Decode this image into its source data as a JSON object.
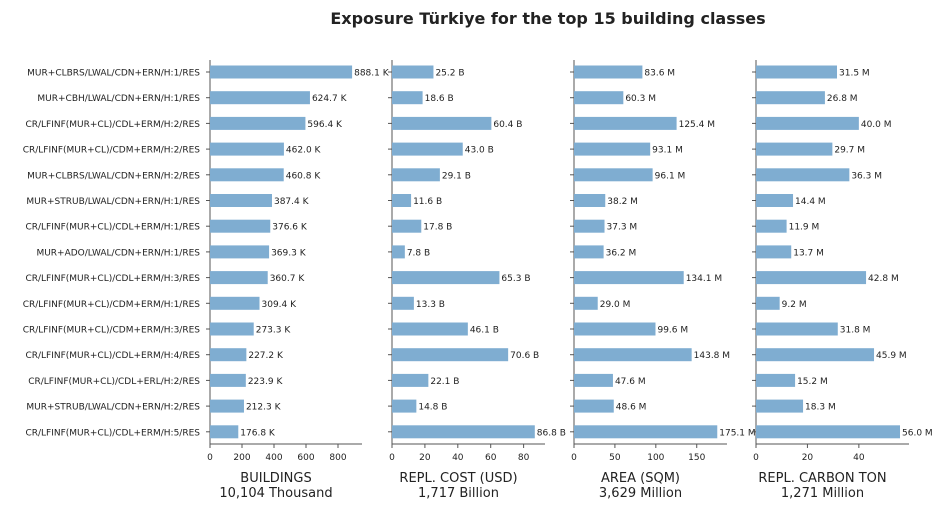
{
  "chart_data": {
    "type": "bar",
    "orientation": "horizontal",
    "title": "Exposure Türkiye for the top 15 building classes",
    "bar_color": "#7fadd1",
    "categories": [
      "MUR+CLBRS/LWAL/CDN+ERN/H:1/RES",
      "MUR+CBH/LWAL/CDN+ERN/H:1/RES",
      "CR/LFINF(MUR+CL)/CDL+ERM/H:2/RES",
      "CR/LFINF(MUR+CL)/CDM+ERM/H:2/RES",
      "MUR+CLBRS/LWAL/CDN+ERN/H:2/RES",
      "MUR+STRUB/LWAL/CDN+ERN/H:1/RES",
      "CR/LFINF(MUR+CL)/CDL+ERM/H:1/RES",
      "MUR+ADO/LWAL/CDN+ERN/H:1/RES",
      "CR/LFINF(MUR+CL)/CDL+ERM/H:3/RES",
      "CR/LFINF(MUR+CL)/CDM+ERM/H:1/RES",
      "CR/LFINF(MUR+CL)/CDM+ERM/H:3/RES",
      "CR/LFINF(MUR+CL)/CDL+ERM/H:4/RES",
      "CR/LFINF(MUR+CL)/CDL+ERL/H:2/RES",
      "MUR+STRUB/LWAL/CDN+ERN/H:2/RES",
      "CR/LFINF(MUR+CL)/CDL+ERM/H:5/RES"
    ],
    "panels": [
      {
        "xlabel": "BUILDINGS",
        "total": "10,104 Thousand",
        "xlim": [
          0,
          950
        ],
        "ticks": [
          0,
          200,
          400,
          600,
          800
        ],
        "values": [
          888.1,
          624.7,
          596.4,
          462.0,
          460.8,
          387.4,
          376.6,
          369.3,
          360.7,
          309.4,
          273.3,
          227.2,
          223.9,
          212.3,
          176.8
        ],
        "labels": [
          "888.1 K",
          "624.7 K",
          "596.4 K",
          "462.0 K",
          "460.8 K",
          "387.4 K",
          "376.6 K",
          "369.3 K",
          "360.7 K",
          "309.4 K",
          "273.3 K",
          "227.2 K",
          "223.9 K",
          "212.3 K",
          "176.8 K"
        ]
      },
      {
        "xlabel": "REPL. COST (USD)",
        "total": "1,717 Billion",
        "xlim": [
          0,
          93
        ],
        "ticks": [
          0,
          20,
          40,
          60,
          80
        ],
        "values": [
          25.2,
          18.6,
          60.4,
          43.0,
          29.1,
          11.6,
          17.8,
          7.8,
          65.3,
          13.3,
          46.1,
          70.6,
          22.1,
          14.8,
          86.8
        ],
        "labels": [
          "25.2 B",
          "18.6 B",
          "60.4 B",
          "43.0 B",
          "29.1 B",
          "11.6 B",
          "17.8 B",
          "7.8 B",
          "65.3 B",
          "13.3 B",
          "46.1 B",
          "70.6 B",
          "22.1 B",
          "14.8 B",
          "86.8 B"
        ]
      },
      {
        "xlabel": "AREA (SQM)",
        "total": "3,629 Million",
        "xlim": [
          0,
          187
        ],
        "ticks": [
          0,
          50,
          100,
          150
        ],
        "values": [
          83.6,
          60.3,
          125.4,
          93.1,
          96.1,
          38.2,
          37.3,
          36.2,
          134.1,
          29.0,
          99.6,
          143.8,
          47.6,
          48.6,
          175.1
        ],
        "labels": [
          "83.6 M",
          "60.3 M",
          "125.4 M",
          "93.1 M",
          "96.1 M",
          "38.2 M",
          "37.3 M",
          "36.2 M",
          "134.1 M",
          "29.0 M",
          "99.6 M",
          "143.8 M",
          "47.6 M",
          "48.6 M",
          "175.1 M"
        ]
      },
      {
        "xlabel": "REPL. CARBON TON",
        "total": "1,271 Million",
        "xlim": [
          0,
          59.5
        ],
        "ticks": [
          0,
          20,
          40
        ],
        "values": [
          31.5,
          26.8,
          40.0,
          29.7,
          36.3,
          14.4,
          11.9,
          13.7,
          42.8,
          9.2,
          31.8,
          45.9,
          15.2,
          18.3,
          56.0
        ],
        "labels": [
          "31.5 M",
          "26.8 M",
          "40.0 M",
          "29.7 M",
          "36.3 M",
          "14.4 M",
          "11.9 M",
          "13.7 M",
          "42.8 M",
          "9.2 M",
          "31.8 M",
          "45.9 M",
          "15.2 M",
          "18.3 M",
          "56.0 M"
        ]
      }
    ]
  }
}
